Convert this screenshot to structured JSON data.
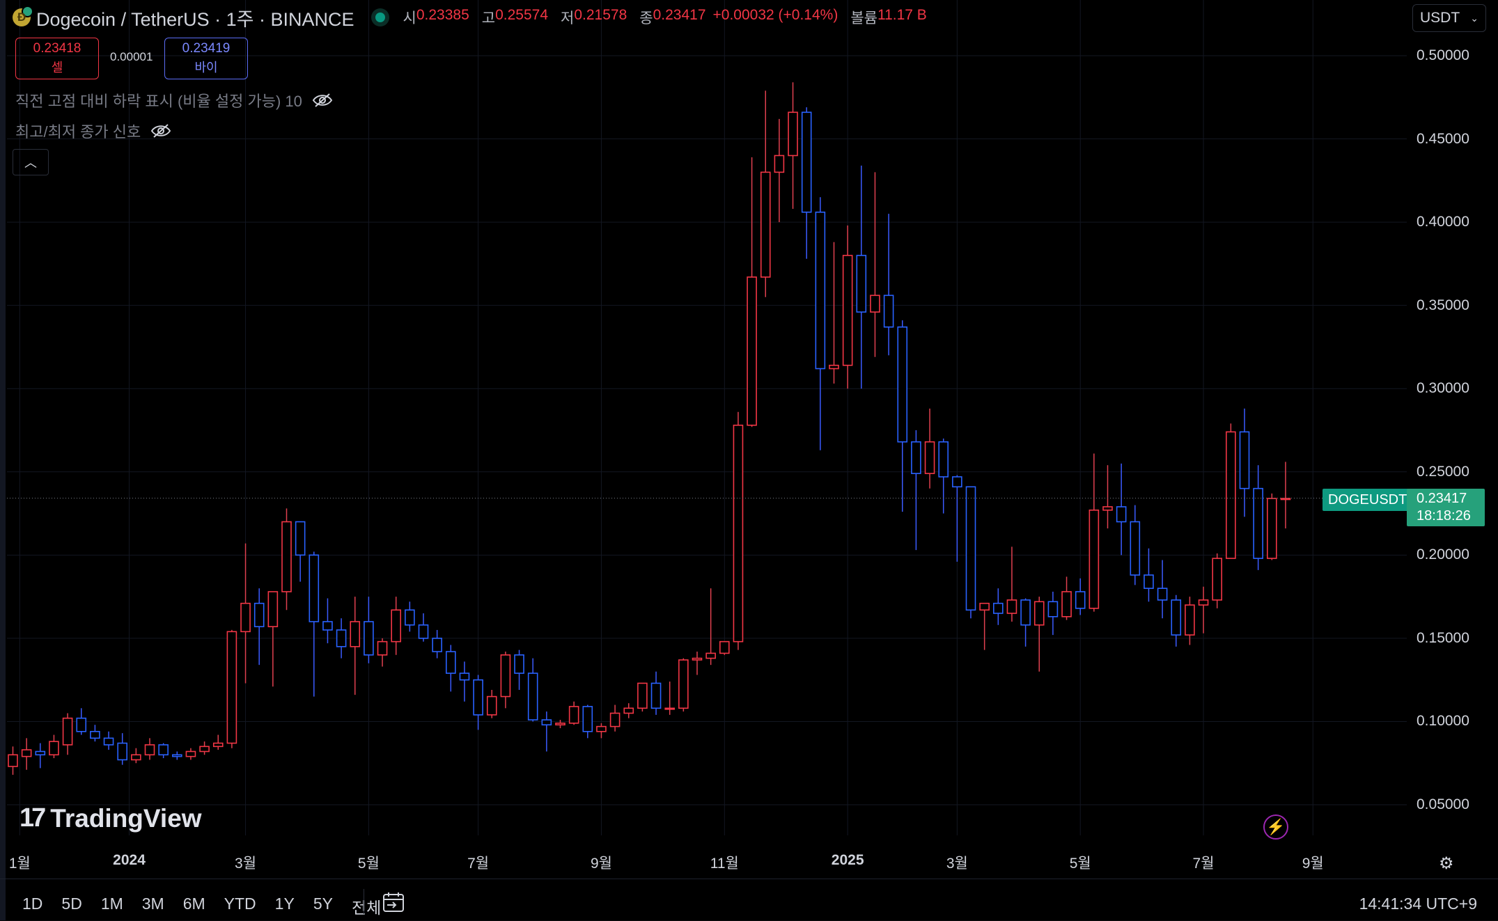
{
  "header": {
    "symbol": "Dogecoin / TetherUS · 1주 · BINANCE",
    "ohlc": [
      {
        "label": "시",
        "value": "0.23385"
      },
      {
        "label": "고",
        "value": "0.25574"
      },
      {
        "label": "저",
        "value": "0.21578"
      },
      {
        "label": "종",
        "value": "0.23417"
      }
    ],
    "change": "+0.00032 (+0.14%)",
    "volume_label": "볼륨",
    "volume_value": "11.17 B",
    "currency": "USDT"
  },
  "trade": {
    "sell_price": "0.23418",
    "sell_label": "셀",
    "spread": "0.00001",
    "buy_price": "0.23419",
    "buy_label": "바이"
  },
  "indicators": [
    {
      "label": "직전 고점 대비 하락 표시 (비율 설정 가능) 10"
    },
    {
      "label": "최고/최저 종가 신호"
    }
  ],
  "last_price": {
    "symbol": "DOGEUSDT",
    "price": "0.23417",
    "countdown": "18:18:26"
  },
  "watermark": "TradingView",
  "timeframes": [
    "1D",
    "5D",
    "1M",
    "3M",
    "6M",
    "YTD",
    "1Y",
    "5Y",
    "전체"
  ],
  "clock": "14:41:34 UTC+9",
  "colors": {
    "up": "#f23645",
    "down": "#2962ff",
    "up_wick": "#e0404f",
    "down_wick": "#3b5bff",
    "background": "#000000",
    "grid": "#131722"
  },
  "chart_data": {
    "type": "candlestick",
    "interval": "1W",
    "ylim": [
      0.02,
      0.52
    ],
    "y_ticks": [
      0.05,
      0.1,
      0.15,
      0.2,
      0.25,
      0.3,
      0.35,
      0.4,
      0.45,
      0.5
    ],
    "y_tick_labels": [
      "0.05000",
      "0.10000",
      "0.15000",
      "0.20000",
      "0.25000",
      "0.30000",
      "0.35000",
      "0.40000",
      "0.45000",
      "0.50000"
    ],
    "x_tick_labels": [
      {
        "label": "1월",
        "index": 0.5,
        "year": false
      },
      {
        "label": "2024",
        "index": 8.5,
        "year": true
      },
      {
        "label": "3월",
        "index": 17,
        "year": false
      },
      {
        "label": "5월",
        "index": 26,
        "year": false
      },
      {
        "label": "7월",
        "index": 34,
        "year": false
      },
      {
        "label": "9월",
        "index": 43,
        "year": false
      },
      {
        "label": "11월",
        "index": 52,
        "year": false
      },
      {
        "label": "2025",
        "index": 61,
        "year": true
      },
      {
        "label": "3월",
        "index": 69,
        "year": false
      },
      {
        "label": "5월",
        "index": 78,
        "year": false
      },
      {
        "label": "7월",
        "index": 87,
        "year": false
      },
      {
        "label": "9월",
        "index": 95,
        "year": false
      }
    ],
    "last_price": 0.23417,
    "candles": [
      [
        0.073,
        0.085,
        0.068,
        0.08
      ],
      [
        0.079,
        0.09,
        0.071,
        0.083
      ],
      [
        0.082,
        0.087,
        0.072,
        0.08
      ],
      [
        0.08,
        0.092,
        0.078,
        0.088
      ],
      [
        0.086,
        0.105,
        0.08,
        0.102
      ],
      [
        0.102,
        0.108,
        0.092,
        0.094
      ],
      [
        0.094,
        0.098,
        0.088,
        0.09
      ],
      [
        0.09,
        0.094,
        0.083,
        0.086
      ],
      [
        0.087,
        0.093,
        0.074,
        0.077
      ],
      [
        0.077,
        0.084,
        0.075,
        0.08
      ],
      [
        0.08,
        0.09,
        0.077,
        0.086
      ],
      [
        0.086,
        0.087,
        0.078,
        0.08
      ],
      [
        0.08,
        0.082,
        0.077,
        0.079
      ],
      [
        0.079,
        0.084,
        0.077,
        0.082
      ],
      [
        0.082,
        0.088,
        0.08,
        0.085
      ],
      [
        0.085,
        0.092,
        0.083,
        0.087
      ],
      [
        0.087,
        0.155,
        0.084,
        0.154
      ],
      [
        0.154,
        0.207,
        0.123,
        0.171
      ],
      [
        0.171,
        0.18,
        0.134,
        0.157
      ],
      [
        0.157,
        0.178,
        0.121,
        0.178
      ],
      [
        0.178,
        0.228,
        0.167,
        0.22
      ],
      [
        0.22,
        0.22,
        0.184,
        0.2
      ],
      [
        0.2,
        0.202,
        0.115,
        0.16
      ],
      [
        0.16,
        0.174,
        0.147,
        0.155
      ],
      [
        0.155,
        0.162,
        0.138,
        0.145
      ],
      [
        0.145,
        0.175,
        0.116,
        0.16
      ],
      [
        0.16,
        0.175,
        0.135,
        0.14
      ],
      [
        0.14,
        0.15,
        0.133,
        0.148
      ],
      [
        0.148,
        0.175,
        0.14,
        0.167
      ],
      [
        0.167,
        0.172,
        0.154,
        0.158
      ],
      [
        0.158,
        0.165,
        0.148,
        0.15
      ],
      [
        0.15,
        0.155,
        0.138,
        0.142
      ],
      [
        0.142,
        0.146,
        0.118,
        0.129
      ],
      [
        0.129,
        0.136,
        0.112,
        0.125
      ],
      [
        0.125,
        0.128,
        0.095,
        0.104
      ],
      [
        0.104,
        0.119,
        0.102,
        0.115
      ],
      [
        0.115,
        0.142,
        0.108,
        0.14
      ],
      [
        0.14,
        0.143,
        0.119,
        0.129
      ],
      [
        0.129,
        0.138,
        0.1,
        0.101
      ],
      [
        0.101,
        0.106,
        0.082,
        0.098
      ],
      [
        0.098,
        0.101,
        0.096,
        0.099
      ],
      [
        0.099,
        0.112,
        0.098,
        0.109
      ],
      [
        0.109,
        0.11,
        0.09,
        0.094
      ],
      [
        0.094,
        0.099,
        0.09,
        0.097
      ],
      [
        0.097,
        0.11,
        0.094,
        0.105
      ],
      [
        0.105,
        0.111,
        0.102,
        0.108
      ],
      [
        0.108,
        0.122,
        0.106,
        0.123
      ],
      [
        0.123,
        0.13,
        0.104,
        0.108
      ],
      [
        0.108,
        0.124,
        0.104,
        0.108
      ],
      [
        0.108,
        0.138,
        0.106,
        0.137
      ],
      [
        0.137,
        0.142,
        0.128,
        0.138
      ],
      [
        0.138,
        0.18,
        0.134,
        0.141
      ],
      [
        0.141,
        0.148,
        0.14,
        0.148
      ],
      [
        0.148,
        0.286,
        0.143,
        0.278
      ],
      [
        0.278,
        0.439,
        0.277,
        0.367
      ],
      [
        0.367,
        0.479,
        0.355,
        0.43
      ],
      [
        0.43,
        0.462,
        0.4,
        0.44
      ],
      [
        0.44,
        0.484,
        0.408,
        0.466
      ],
      [
        0.466,
        0.469,
        0.378,
        0.406
      ],
      [
        0.406,
        0.415,
        0.263,
        0.312
      ],
      [
        0.312,
        0.388,
        0.303,
        0.314
      ],
      [
        0.314,
        0.398,
        0.3,
        0.38
      ],
      [
        0.38,
        0.434,
        0.3,
        0.346
      ],
      [
        0.346,
        0.43,
        0.319,
        0.356
      ],
      [
        0.356,
        0.405,
        0.32,
        0.337
      ],
      [
        0.337,
        0.341,
        0.226,
        0.268
      ],
      [
        0.268,
        0.275,
        0.203,
        0.249
      ],
      [
        0.249,
        0.288,
        0.24,
        0.268
      ],
      [
        0.268,
        0.27,
        0.225,
        0.247
      ],
      [
        0.247,
        0.248,
        0.196,
        0.241
      ],
      [
        0.241,
        0.241,
        0.162,
        0.167
      ],
      [
        0.167,
        0.17,
        0.143,
        0.171
      ],
      [
        0.171,
        0.18,
        0.158,
        0.165
      ],
      [
        0.165,
        0.205,
        0.16,
        0.173
      ],
      [
        0.173,
        0.174,
        0.145,
        0.158
      ],
      [
        0.158,
        0.175,
        0.13,
        0.172
      ],
      [
        0.172,
        0.178,
        0.152,
        0.163
      ],
      [
        0.163,
        0.187,
        0.161,
        0.178
      ],
      [
        0.178,
        0.186,
        0.164,
        0.168
      ],
      [
        0.168,
        0.261,
        0.166,
        0.227
      ],
      [
        0.227,
        0.254,
        0.216,
        0.229
      ],
      [
        0.229,
        0.255,
        0.2,
        0.22
      ],
      [
        0.22,
        0.23,
        0.182,
        0.188
      ],
      [
        0.188,
        0.204,
        0.172,
        0.18
      ],
      [
        0.18,
        0.197,
        0.162,
        0.173
      ],
      [
        0.173,
        0.176,
        0.145,
        0.152
      ],
      [
        0.152,
        0.175,
        0.146,
        0.17
      ],
      [
        0.17,
        0.181,
        0.153,
        0.173
      ],
      [
        0.173,
        0.201,
        0.168,
        0.198
      ],
      [
        0.198,
        0.279,
        0.199,
        0.274
      ],
      [
        0.274,
        0.288,
        0.223,
        0.24
      ],
      [
        0.24,
        0.254,
        0.191,
        0.198
      ],
      [
        0.198,
        0.237,
        0.197,
        0.234
      ],
      [
        0.234,
        0.256,
        0.216,
        0.234
      ]
    ]
  }
}
